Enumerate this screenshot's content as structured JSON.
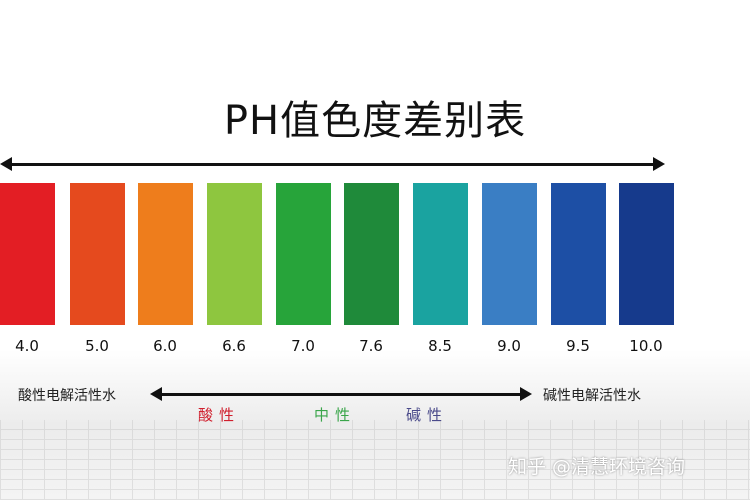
{
  "title": "PH值色度差别表",
  "scale": [
    {
      "label": "4.0",
      "color": "#e31e24"
    },
    {
      "label": "5.0",
      "color": "#e54a1e"
    },
    {
      "label": "6.0",
      "color": "#ee7d1c"
    },
    {
      "label": "6.6",
      "color": "#8ec63f"
    },
    {
      "label": "7.0",
      "color": "#27a43a"
    },
    {
      "label": "7.6",
      "color": "#1f8a3a"
    },
    {
      "label": "8.5",
      "color": "#1aa3a0"
    },
    {
      "label": "9.0",
      "color": "#3a7ec4"
    },
    {
      "label": "9.5",
      "color": "#1d4fa5"
    },
    {
      "label": "10.0",
      "color": "#163a8c"
    }
  ],
  "left_label": "酸性电解活性水",
  "right_label": "碱性电解活性水",
  "categories": [
    {
      "label": "酸性",
      "color": "#d0202e"
    },
    {
      "label": "中性",
      "color": "#3aa54a"
    },
    {
      "label": "碱性",
      "color": "#4a4a8a"
    }
  ],
  "watermark": "知乎 @清慧环境咨询"
}
